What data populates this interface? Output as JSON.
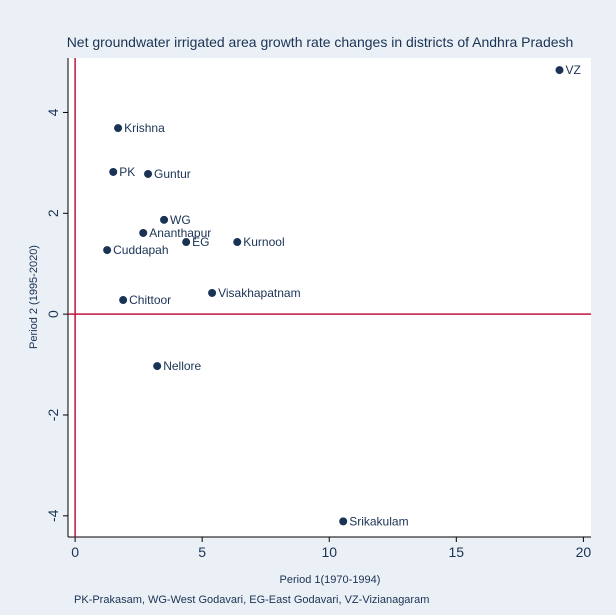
{
  "chart_data": {
    "type": "scatter",
    "title": "Net groundwater irrigated area growth rate changes in districts of Andhra Pradesh",
    "x_label": "Period 1(1970-1994)",
    "y_label": "Period 2 (1995-2020)",
    "note": "PK-Prakasam, WG-West Godavari, EG-East Godavari, VZ-Vizianagaram",
    "color": "#1a3355",
    "reference_color": "#c0143c",
    "xline": 0,
    "yline": 0,
    "labels": [
      "VZ",
      "Krishna",
      "PK",
      "Guntur",
      "WG",
      "Ananthapur",
      "EG",
      "Kurnool",
      "Cuddapah",
      "Chittoor",
      "Visakhapatnam",
      "Nellore",
      "Srikakulam"
    ],
    "x": [
      19.06,
      1.69,
      1.5,
      2.87,
      3.5,
      2.68,
      4.37,
      6.38,
      1.26,
      1.89,
      5.39,
      3.23,
      10.55
    ],
    "y": [
      4.84,
      3.69,
      2.82,
      2.78,
      1.87,
      1.61,
      1.43,
      1.43,
      1.27,
      0.28,
      0.42,
      -1.03,
      -4.11
    ],
    "xlim": [
      -0.28,
      20.3
    ],
    "ylim": [
      -4.42,
      5.08
    ],
    "xticks": [
      0,
      5,
      10,
      15,
      20
    ],
    "yticks": [
      -4,
      -2,
      0,
      2,
      4
    ]
  }
}
